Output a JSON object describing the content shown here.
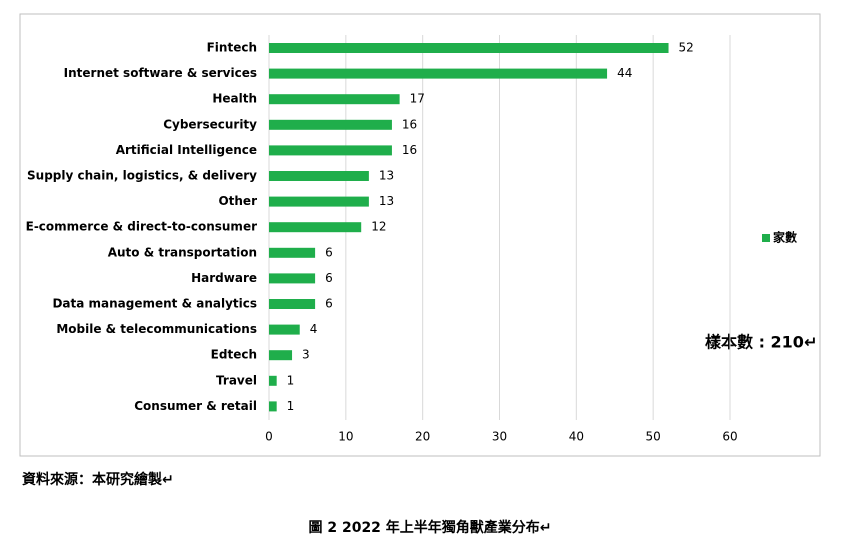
{
  "chart_data": {
    "type": "bar",
    "orientation": "horizontal",
    "categories": [
      "Fintech",
      "Internet software & services",
      "Health",
      "Cybersecurity",
      "Artificial Intelligence",
      "Supply chain, logistics, & delivery",
      "Other",
      "E-commerce & direct-to-consumer",
      "Auto & transportation",
      "Hardware",
      "Data management & analytics",
      "Mobile & telecommunications",
      "Edtech",
      "Travel",
      "Consumer & retail"
    ],
    "series": [
      {
        "name": "家數",
        "color": "#1fae4b",
        "values": [
          52,
          44,
          17,
          16,
          16,
          13,
          13,
          12,
          6,
          6,
          6,
          4,
          3,
          1,
          1
        ]
      }
    ],
    "xlim": [
      0,
      60
    ],
    "xticks": [
      0,
      10,
      20,
      30,
      40,
      50,
      60
    ],
    "grid": true,
    "legend": "right",
    "annotation": "樣本數 : 210↵"
  },
  "source": "資料來源：本研究繪製↵",
  "caption": "圖 2 2022 年上半年獨角獸產業分布↵"
}
